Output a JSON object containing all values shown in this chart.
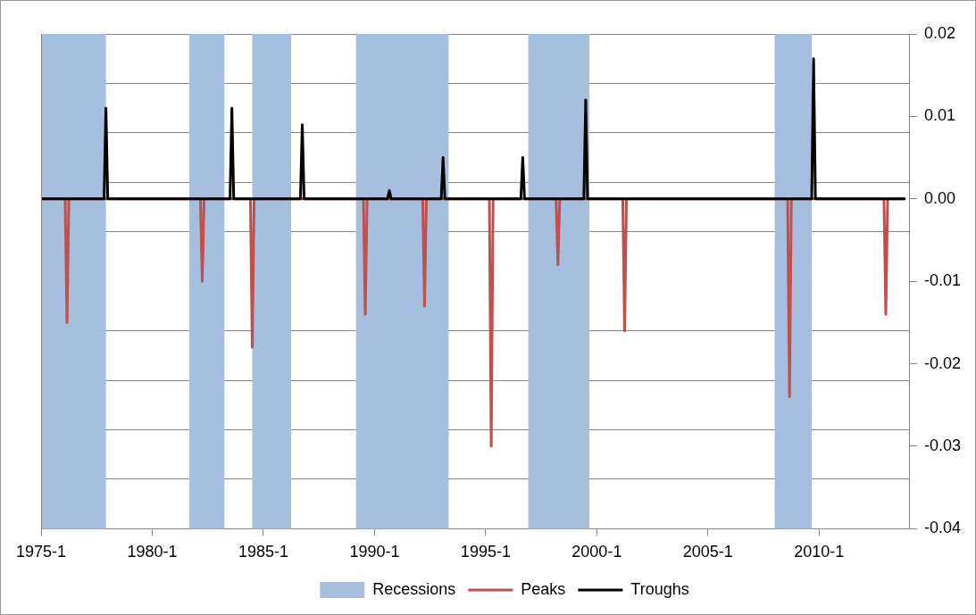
{
  "chart_data": {
    "type": "line",
    "xlim": [
      "1975-01",
      "2014-02"
    ],
    "xticks": [
      {
        "value": "1975-01",
        "label": "1975-1"
      },
      {
        "value": "1980-01",
        "label": "1980-1"
      },
      {
        "value": "1985-01",
        "label": "1985-1"
      },
      {
        "value": "1990-01",
        "label": "1990-1"
      },
      {
        "value": "1995-01",
        "label": "1995-1"
      },
      {
        "value": "2000-01",
        "label": "2000-1"
      },
      {
        "value": "2005-01",
        "label": "2005-1"
      },
      {
        "value": "2010-01",
        "label": "2010-1"
      }
    ],
    "ylim": [
      -0.04,
      0.02
    ],
    "yticks": [
      -0.04,
      {
        "value": -0.034,
        "label": null
      },
      -0.03,
      {
        "value": -0.028,
        "label": null
      },
      {
        "value": -0.022,
        "label": null
      },
      -0.02,
      {
        "value": -0.016,
        "label": null
      },
      -0.01,
      {
        "value": -0.004,
        "label": null
      },
      {
        "value": 0,
        "label": "0.00"
      },
      {
        "value": 0.002,
        "label": null
      },
      {
        "value": 0.008,
        "label": null
      },
      0.01,
      {
        "value": 0.014,
        "label": null
      },
      0.02
    ],
    "grid": "y",
    "legend": "bottom",
    "marker": "none",
    "line_style": "solid",
    "bands": [
      {
        "axis": "x",
        "from": "1975-01",
        "to": "1977-12",
        "label": "Recessions",
        "color": "#a7bfde"
      },
      {
        "axis": "x",
        "from": "1981-09",
        "to": "1983-04",
        "color": "#a7bfde"
      },
      {
        "axis": "x",
        "from": "1984-07",
        "to": "1986-04",
        "color": "#a7bfde"
      },
      {
        "axis": "x",
        "from": "1989-03",
        "to": "1993-05",
        "color": "#a7bfde"
      },
      {
        "axis": "x",
        "from": "1996-12",
        "to": "1999-09",
        "color": "#a7bfde"
      },
      {
        "axis": "x",
        "from": "2008-01",
        "to": "2009-09",
        "color": "#a7bfde"
      }
    ],
    "series": [
      {
        "name": "Peaks",
        "color": "#c0504d",
        "x": [
          "1975-01",
          "1976-02",
          "1976-03",
          "1976-04",
          "1982-03",
          "1982-04",
          "1982-05",
          "1984-06",
          "1984-07",
          "1984-08",
          "1989-07",
          "1989-08",
          "1989-09",
          "1992-03",
          "1992-04",
          "1992-05",
          "1995-03",
          "1995-04",
          "1995-05",
          "1998-03",
          "1998-04",
          "1998-05",
          "2001-03",
          "2001-04",
          "2001-05",
          "2008-08",
          "2008-09",
          "2008-10",
          "2012-12",
          "2013-01",
          "2013-02",
          "2013-11"
        ],
        "values": [
          0,
          0,
          -0.015,
          0,
          0,
          -0.01,
          0,
          0,
          -0.018,
          0,
          0,
          -0.014,
          0,
          0,
          -0.013,
          0,
          0,
          -0.03,
          0,
          0,
          -0.008,
          0,
          0,
          -0.016,
          0,
          0,
          -0.024,
          0,
          0,
          -0.014,
          0,
          0
        ]
      },
      {
        "name": "Troughs",
        "color": "#000000",
        "x": [
          "1975-01",
          "1977-11",
          "1977-12",
          "1978-01",
          "1983-07",
          "1983-08",
          "1983-09",
          "1986-09",
          "1986-10",
          "1986-11",
          "1990-08",
          "1990-09",
          "1990-10",
          "1993-01",
          "1993-02",
          "1993-03",
          "1996-08",
          "1996-09",
          "1996-10",
          "1999-06",
          "1999-07",
          "1999-08",
          "2009-09",
          "2009-10",
          "2009-11",
          "2013-11"
        ],
        "values": [
          0,
          0,
          0.011,
          0,
          0,
          0.011,
          0,
          0,
          0.009,
          0,
          0,
          0.001,
          0,
          0,
          0.005,
          0,
          0,
          0.005,
          0,
          0,
          0.012,
          0,
          0,
          0.017,
          0,
          0
        ]
      }
    ]
  }
}
